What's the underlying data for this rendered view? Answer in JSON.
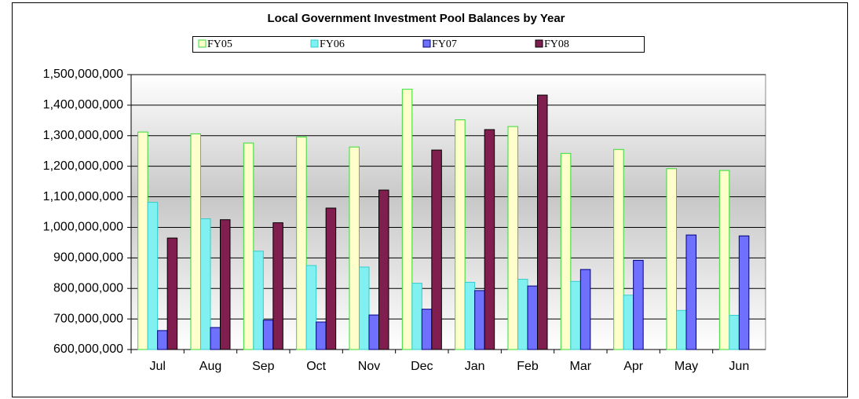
{
  "chart_data": {
    "type": "bar",
    "title": "Local Government Investment Pool Balances by Year",
    "categories": [
      "Jul",
      "Aug",
      "Sep",
      "Oct",
      "Nov",
      "Dec",
      "Jan",
      "Feb",
      "Mar",
      "Apr",
      "May",
      "Jun"
    ],
    "series": [
      {
        "name": "FY05",
        "color": "#ffffcc",
        "border": "#33dd33",
        "values": [
          1312000000,
          1306000000,
          1276000000,
          1296000000,
          1263000000,
          1452000000,
          1352000000,
          1330000000,
          1242000000,
          1255000000,
          1192000000,
          1186000000
        ]
      },
      {
        "name": "FY06",
        "color": "#80f0f0",
        "border": "#33cccc",
        "values": [
          1082000000,
          1028000000,
          922000000,
          875000000,
          870000000,
          817000000,
          820000000,
          830000000,
          823000000,
          778000000,
          728000000,
          712000000
        ]
      },
      {
        "name": "FY07",
        "color": "#7070ff",
        "border": "#000080",
        "values": [
          662000000,
          672000000,
          696000000,
          690000000,
          713000000,
          732000000,
          793000000,
          808000000,
          862000000,
          892000000,
          975000000,
          972000000
        ]
      },
      {
        "name": "FY08",
        "color": "#801f4f",
        "border": "#000000",
        "values": [
          965000000,
          1025000000,
          1015000000,
          1063000000,
          1122000000,
          1253000000,
          1320000000,
          1433000000,
          null,
          null,
          null,
          null
        ]
      }
    ],
    "ylim": [
      600000000,
      1500000000
    ],
    "yticks": [
      {
        "value": 600000000,
        "label": "600,000,000"
      },
      {
        "value": 700000000,
        "label": "700,000,000"
      },
      {
        "value": 800000000,
        "label": "800,000,000"
      },
      {
        "value": 900000000,
        "label": "900,000,000"
      },
      {
        "value": 1000000000,
        "label": "1,000,000,000"
      },
      {
        "value": 1100000000,
        "label": "1,100,000,000"
      },
      {
        "value": 1200000000,
        "label": "1,200,000,000"
      },
      {
        "value": 1300000000,
        "label": "1,300,000,000"
      },
      {
        "value": 1400000000,
        "label": "1,400,000,000"
      },
      {
        "value": 1500000000,
        "label": "1,500,000,000"
      }
    ],
    "grid": true,
    "legend": "top"
  }
}
